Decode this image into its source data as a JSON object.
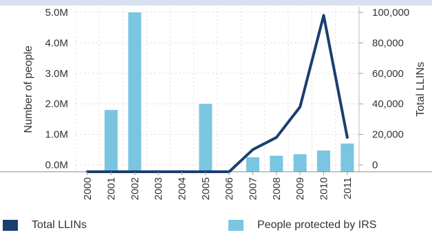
{
  "chart_data": {
    "type": "bar+line",
    "categories": [
      "2000",
      "2001",
      "2002",
      "2003",
      "2004",
      "2005",
      "2006",
      "2007",
      "2008",
      "2009",
      "2010",
      "2011"
    ],
    "series": [
      {
        "name": "People protected by IRS",
        "type": "bar",
        "axis": "left",
        "color": "#7ac6e0",
        "values": [
          0,
          1800000,
          5000000,
          0,
          0,
          2000000,
          0,
          250000,
          300000,
          350000,
          470000,
          700000
        ]
      },
      {
        "name": "Total LLINs",
        "type": "line",
        "axis": "right",
        "color": "#1a3f6e",
        "values": [
          0,
          0,
          0,
          0,
          0,
          0,
          0,
          10000,
          18000,
          38000,
          98000,
          18000
        ]
      }
    ],
    "y_left": {
      "label": "Number of people",
      "ticks": [
        0,
        1000000,
        2000000,
        3000000,
        4000000,
        5000000
      ],
      "tick_labels": [
        "0.0M",
        "1.0M",
        "2.0M",
        "3.0M",
        "4.0M",
        "5.0M"
      ]
    },
    "y_right": {
      "label": "Total LLINs",
      "ticks": [
        0,
        20000,
        40000,
        60000,
        80000,
        100000
      ],
      "tick_labels": [
        "0",
        "20,000",
        "40,000",
        "60,000",
        "80,000",
        "100,000"
      ]
    },
    "grid": true,
    "legend": [
      {
        "label": "Total LLINs",
        "color": "#1a3f6e"
      },
      {
        "label": "People protected by IRS",
        "color": "#7ac6e0"
      }
    ]
  }
}
